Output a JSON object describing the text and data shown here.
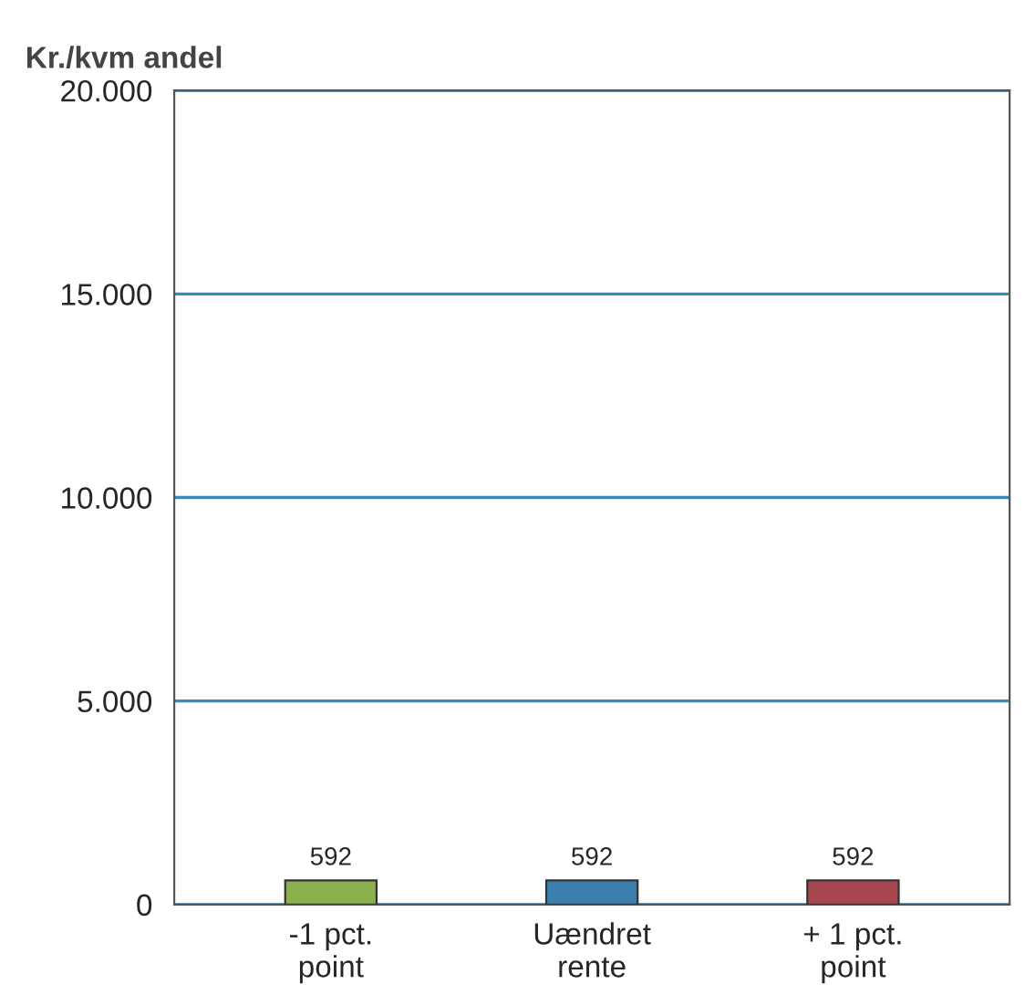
{
  "chart_data": {
    "type": "bar",
    "ylabel": "Kr./kvm andel",
    "categories": [
      "-1 pct.\npoint",
      "Uændret\nrente",
      "+ 1 pct.\npoint"
    ],
    "values": [
      592,
      592,
      592
    ],
    "colors": [
      "#8db04f",
      "#3b7fae",
      "#a8474f"
    ],
    "ylim": [
      0,
      20000
    ],
    "yticks": [
      {
        "value": 0,
        "label": "0"
      },
      {
        "value": 5000,
        "label": "5.000"
      },
      {
        "value": 10000,
        "label": "10.000"
      },
      {
        "value": 15000,
        "label": "15.000"
      },
      {
        "value": 20000,
        "label": "20.000"
      }
    ],
    "grid": "y",
    "data_labels": true,
    "legend": false
  }
}
